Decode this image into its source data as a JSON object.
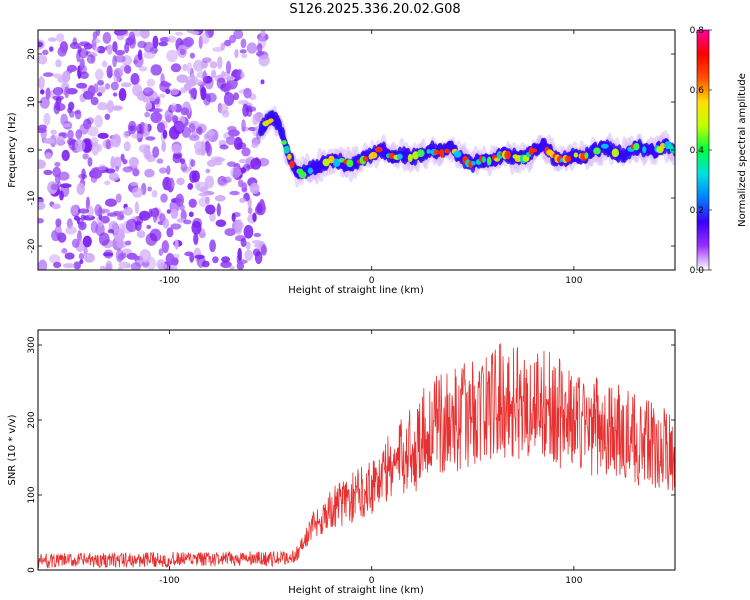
{
  "figure": {
    "title": "S126.2025.336.20.02.G08"
  },
  "chart_data": [
    {
      "type": "heatmap",
      "xlabel": "Height of straight line (km)",
      "ylabel": "Frequency (Hz)",
      "xlim": [
        -165,
        150
      ],
      "ylim": [
        -25,
        25
      ],
      "xticks": [
        -100,
        0,
        100
      ],
      "yticks": [
        -20,
        -10,
        0,
        10,
        20
      ],
      "colorbar": {
        "label": "Normalized spectral amplitude",
        "range": [
          0.0,
          0.8
        ],
        "ticks": [
          "0.0",
          "0.2",
          "0.4",
          "0.6",
          "0.8"
        ],
        "colors": [
          "#ffffff",
          "#9b30ff",
          "#3a00ff",
          "#0080ff",
          "#00e0e0",
          "#00ff40",
          "#c0ff00",
          "#ffe000",
          "#ff5000",
          "#ff0000",
          "#ff00a0"
        ]
      },
      "noise_region_x": [
        -165,
        -53
      ],
      "trace": {
        "x": [
          -55,
          -52,
          -48,
          -45,
          -42,
          -40,
          -38,
          -35,
          -30,
          -25,
          -20,
          -15,
          -10,
          -5,
          0,
          5,
          10,
          15,
          20,
          25,
          30,
          35,
          40,
          45,
          50,
          55,
          60,
          65,
          70,
          75,
          80,
          85,
          90,
          95,
          100,
          105,
          110,
          115,
          120,
          125,
          130,
          135,
          140,
          145,
          150
        ],
        "y": [
          4,
          6,
          7,
          4,
          0,
          -2,
          -4,
          -5,
          -4,
          -3,
          -2,
          -2.5,
          -3,
          -2,
          -1,
          0,
          -1.5,
          -1,
          -1.5,
          -1,
          0,
          -0.5,
          0.5,
          -2,
          -3,
          -2,
          -2,
          -1,
          -1.5,
          -2,
          0,
          1,
          -1.5,
          -2,
          -1,
          -1.5,
          0,
          0.5,
          -0.5,
          -1,
          0.5,
          0,
          -0.5,
          1,
          0
        ]
      }
    },
    {
      "type": "line",
      "xlabel": "Height of straight line (km)",
      "ylabel": "SNR (10 * v/v)",
      "xlim": [
        -165,
        150
      ],
      "ylim": [
        0,
        320
      ],
      "xticks": [
        -100,
        0,
        100
      ],
      "yticks": [
        0,
        100,
        200,
        300
      ],
      "color": "#e83030",
      "series": [
        {
          "name": "SNR",
          "x": [
            -165,
            -140,
            -120,
            -100,
            -80,
            -60,
            -45,
            -38,
            -35,
            -30,
            -25,
            -20,
            -15,
            -10,
            -5,
            0,
            5,
            10,
            15,
            18,
            20,
            22,
            23,
            25,
            30,
            35,
            40,
            45,
            50,
            55,
            60,
            65,
            70,
            75,
            80,
            85,
            90,
            95,
            100,
            105,
            110,
            115,
            120,
            125,
            130,
            135,
            140,
            145,
            150
          ],
          "y": [
            12,
            13,
            13,
            14,
            14,
            15,
            15,
            18,
            30,
            55,
            70,
            80,
            90,
            95,
            105,
            115,
            125,
            140,
            150,
            160,
            170,
            140,
            180,
            185,
            190,
            195,
            200,
            205,
            210,
            215,
            222,
            228,
            225,
            220,
            220,
            225,
            215,
            205,
            200,
            195,
            192,
            188,
            185,
            180,
            175,
            170,
            165,
            160,
            155
          ]
        }
      ]
    }
  ]
}
